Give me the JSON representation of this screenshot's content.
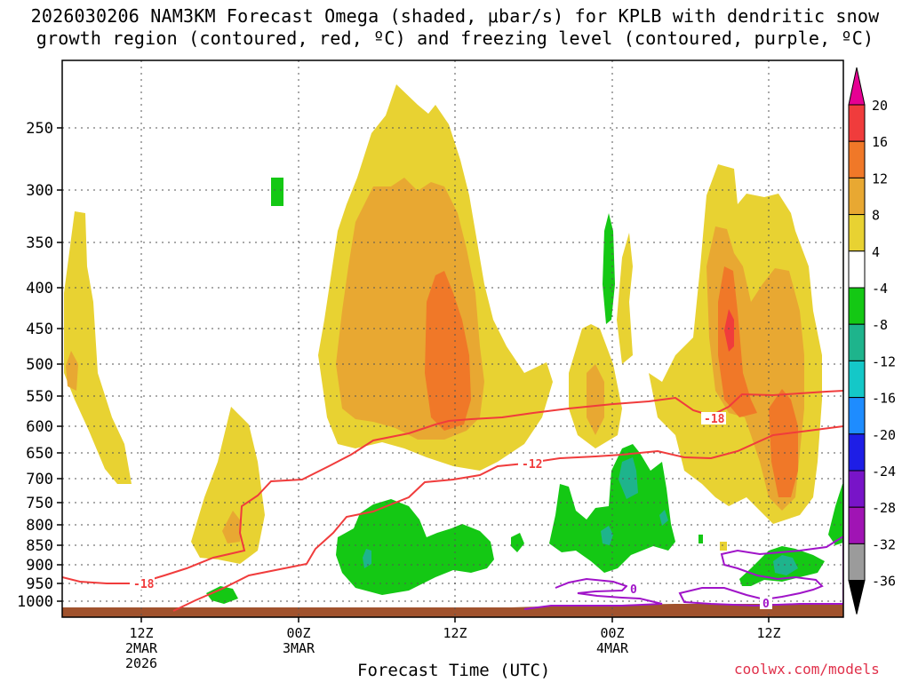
{
  "title": {
    "line1": "2026030206 NAM3KM Forecast Omega (shaded, μbar/s) for KPLB with dendritic snow",
    "line2": "growth region (contoured, red, ºC) and freezing level (contoured, purple, ºC)"
  },
  "xlabel": "Forecast Time (UTC)",
  "credit": "coolwx.com/models",
  "chart_data": {
    "type": "heatmap",
    "y_axis": {
      "label": "",
      "ticks": [
        "250",
        "300",
        "350",
        "400",
        "450",
        "500",
        "550",
        "600",
        "650",
        "700",
        "750",
        "800",
        "850",
        "900",
        "950",
        "1000"
      ],
      "range": [
        200,
        1030
      ]
    },
    "x_axis": {
      "ticks": [
        {
          "lines": [
            "12Z",
            "2MAR",
            "2026"
          ]
        },
        {
          "lines": [
            "00Z",
            "3MAR"
          ]
        },
        {
          "lines": [
            "12Z"
          ]
        },
        {
          "lines": [
            "00Z",
            "4MAR"
          ]
        },
        {
          "lines": [
            "12Z"
          ]
        }
      ],
      "range_hours_from_2026030206": [
        0,
        60
      ]
    },
    "grid": true,
    "colorbar": {
      "labels": [
        "20",
        "16",
        "12",
        "8",
        "4",
        "-4",
        "-8",
        "-12",
        "-16",
        "-20",
        "-24",
        "-28",
        "-32",
        "-36"
      ],
      "colors": [
        "#e60093",
        "#f03c3c",
        "#f07828",
        "#e8a832",
        "#e8d232",
        "#ffffff",
        "#14c814",
        "#1eb48c",
        "#14c8c8",
        "#1e8cff",
        "#1e1ee6",
        "#7814c8",
        "#a014b4",
        "#9b9b9b",
        "#000000"
      ]
    },
    "contours": [
      {
        "label": "-18",
        "color": "#f03c3c"
      },
      {
        "label": "-12",
        "color": "#f03c3c"
      },
      {
        "label": "0",
        "color": "#a014c8"
      }
    ],
    "ground_color": "#a0522d"
  }
}
